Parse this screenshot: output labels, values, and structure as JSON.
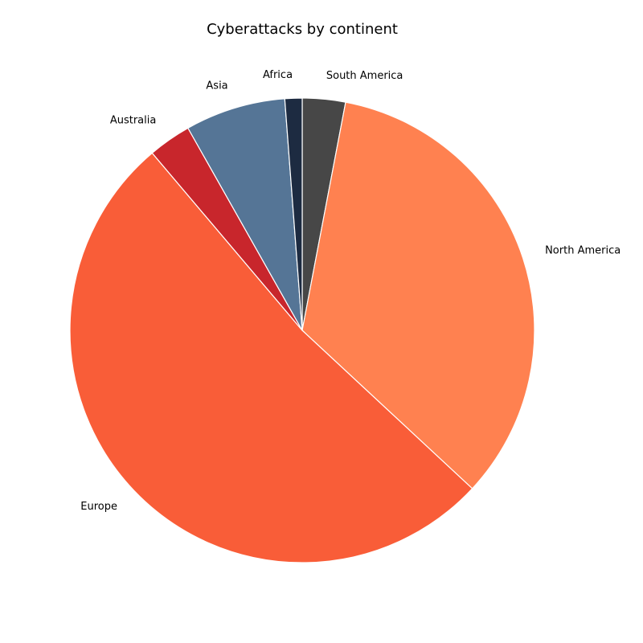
{
  "chart_data": {
    "type": "pie",
    "title": "Cyberattacks by continent",
    "start_angle_deg": 90,
    "direction": "clockwise",
    "slices": [
      {
        "label": "South America",
        "value": 3,
        "color": "#474747"
      },
      {
        "label": "North America",
        "value": 34,
        "color": "#FF8150"
      },
      {
        "label": "Europe",
        "value": 52,
        "color": "#F95D38"
      },
      {
        "label": "Australia",
        "value": 3,
        "color": "#C8262C"
      },
      {
        "label": "Asia",
        "value": 7,
        "color": "#557596"
      },
      {
        "label": "Africa",
        "value": 1.2,
        "color": "#1D2B41"
      }
    ]
  }
}
